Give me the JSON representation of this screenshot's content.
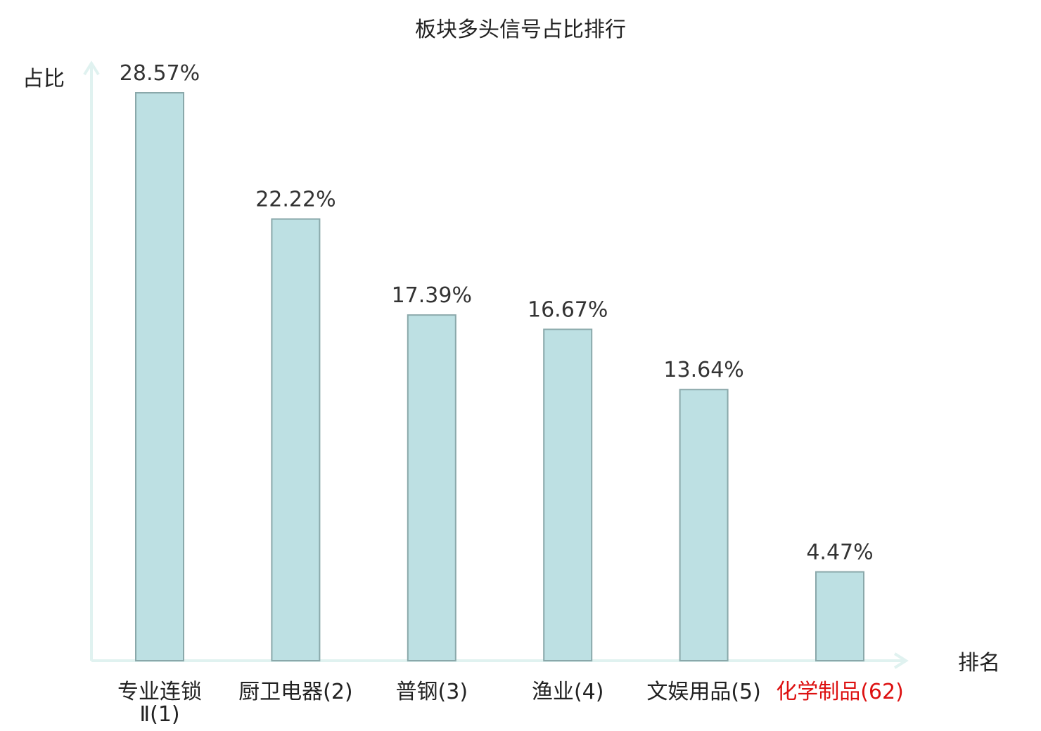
{
  "chart_data": {
    "type": "bar",
    "title": "板块多头信号占比排行",
    "ylabel": "占比",
    "xlabel": "排名",
    "ylim": [
      0,
      30
    ],
    "grid": false,
    "categories": [
      {
        "name": "专业连锁",
        "line2": "Ⅱ(1)",
        "rank": "",
        "highlight": false
      },
      {
        "name": "厨卫电器",
        "line2": "",
        "rank": "(2)",
        "highlight": false
      },
      {
        "name": "普钢",
        "line2": "",
        "rank": "(3)",
        "highlight": false
      },
      {
        "name": "渔业",
        "line2": "",
        "rank": "(4)",
        "highlight": false
      },
      {
        "name": "文娱用品",
        "line2": "",
        "rank": "(5)",
        "highlight": false
      },
      {
        "name": "化学制品",
        "line2": "",
        "rank": "(62)",
        "highlight": true
      }
    ],
    "values": [
      28.57,
      22.22,
      17.39,
      16.67,
      13.64,
      4.47
    ],
    "value_labels": [
      "28.57%",
      "22.22%",
      "17.39%",
      "16.67%",
      "13.64%",
      "4.47%"
    ],
    "colors": {
      "bar_fill": "#bde0e3",
      "bar_stroke": "#8aa8aa",
      "axis": "#e0f2f0",
      "text": "#222222",
      "highlight": "#dd1111"
    }
  }
}
